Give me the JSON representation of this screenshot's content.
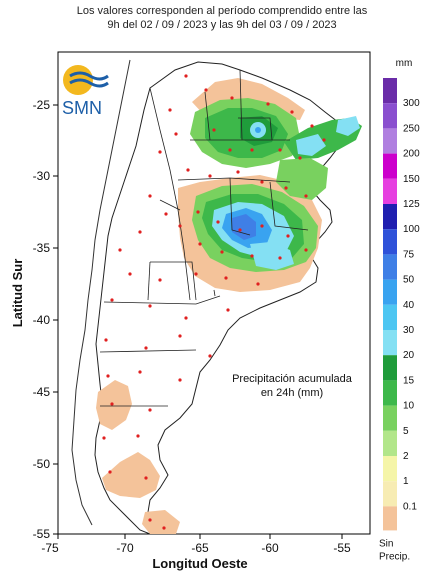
{
  "header": {
    "line1": "Los valores corresponden al período comprendido entre las",
    "line2": "9h del 02 / 09 / 2023  y las 9h del 03 / 09 / 2023"
  },
  "logo": {
    "text": "SMN"
  },
  "axes": {
    "xlabel": "Longitud Oeste",
    "ylabel": "Latitud Sur",
    "xticks": [
      "-75",
      "-70",
      "-65",
      "-60",
      "-55"
    ],
    "yticks": [
      "-25",
      "-30",
      "-35",
      "-40",
      "-45",
      "-50",
      "-55"
    ]
  },
  "annotation": {
    "line1": "Precipitación acumulada",
    "line2": "en 24h (mm)"
  },
  "legend": {
    "unit": "mm",
    "labels": [
      "300",
      "250",
      "200",
      "150",
      "125",
      "100",
      "75",
      "50",
      "40",
      "30",
      "20",
      "15",
      "10",
      "5",
      "2",
      "1",
      "0.1"
    ],
    "colors": [
      "#6a2ca8",
      "#8a4fcf",
      "#b07fe0",
      "#cc00cc",
      "#e63fe0",
      "#1f1fb0",
      "#2f52d9",
      "#3f7fe6",
      "#39a3f0",
      "#4dc6f2",
      "#84e0f3",
      "#1f9c3b",
      "#3db84a",
      "#79d15f",
      "#b2e68a",
      "#f5f5a8",
      "#f7ecb3"
    ],
    "nodata_color": "#f4c39a",
    "nodata_label1": "Sin",
    "nodata_label2": "Precip."
  }
}
